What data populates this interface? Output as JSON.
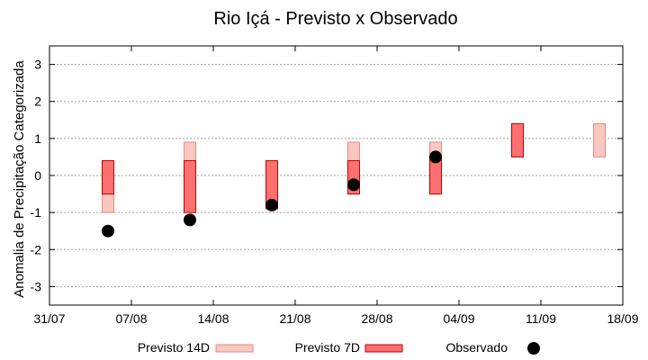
{
  "chart_data": {
    "type": "range-bar",
    "title": "Rio Içá - Previsto x Observado",
    "xlabel": "",
    "ylabel": "Anomalia de Precipitação Categorizada",
    "xlim": [
      "2023-07-31",
      "2023-09-18"
    ],
    "ylim": [
      -3.5,
      3.5
    ],
    "x_ticks": [
      "31/07",
      "07/08",
      "14/08",
      "21/08",
      "28/08",
      "04/09",
      "11/09",
      "18/09"
    ],
    "y_ticks": [
      -3,
      -2,
      -1,
      0,
      1,
      2,
      3
    ],
    "grid": "horizontal dotted",
    "legend_position": "bottom",
    "colors": {
      "previsto_14d_fill": "#f9c8c0",
      "previsto_14d_edge": "#e98a80",
      "previsto_7d_fill": "#ff7070",
      "previsto_7d_edge": "#c00000",
      "observado": "#000000",
      "grid": "#a0a0a0"
    },
    "series": [
      {
        "name": "Previsto 14D",
        "kind": "range",
        "points": [
          {
            "x": "2023-08-05",
            "low": -1,
            "high": 0.4
          },
          {
            "x": "2023-08-12",
            "low": -1,
            "high": 0.9
          },
          {
            "x": "2023-08-26",
            "low": -0.5,
            "high": 0.9
          },
          {
            "x": "2023-09-02",
            "low": -0.5,
            "high": 0.9
          },
          {
            "x": "2023-09-16",
            "low": 0.5,
            "high": 1.4
          }
        ]
      },
      {
        "name": "Previsto 7D",
        "kind": "range",
        "points": [
          {
            "x": "2023-08-05",
            "low": -0.5,
            "high": 0.4
          },
          {
            "x": "2023-08-12",
            "low": -1,
            "high": 0.4
          },
          {
            "x": "2023-08-19",
            "low": -0.9,
            "high": 0.4
          },
          {
            "x": "2023-08-26",
            "low": -0.5,
            "high": 0.4
          },
          {
            "x": "2023-09-02",
            "low": -0.5,
            "high": 0.5
          },
          {
            "x": "2023-09-09",
            "low": 0.5,
            "high": 1.4
          }
        ]
      },
      {
        "name": "Observado",
        "kind": "point",
        "points": [
          {
            "x": "2023-08-05",
            "y": -1.5
          },
          {
            "x": "2023-08-12",
            "y": -1.2
          },
          {
            "x": "2023-08-19",
            "y": -0.8
          },
          {
            "x": "2023-08-26",
            "y": -0.25
          },
          {
            "x": "2023-09-02",
            "y": 0.5
          }
        ]
      }
    ]
  }
}
